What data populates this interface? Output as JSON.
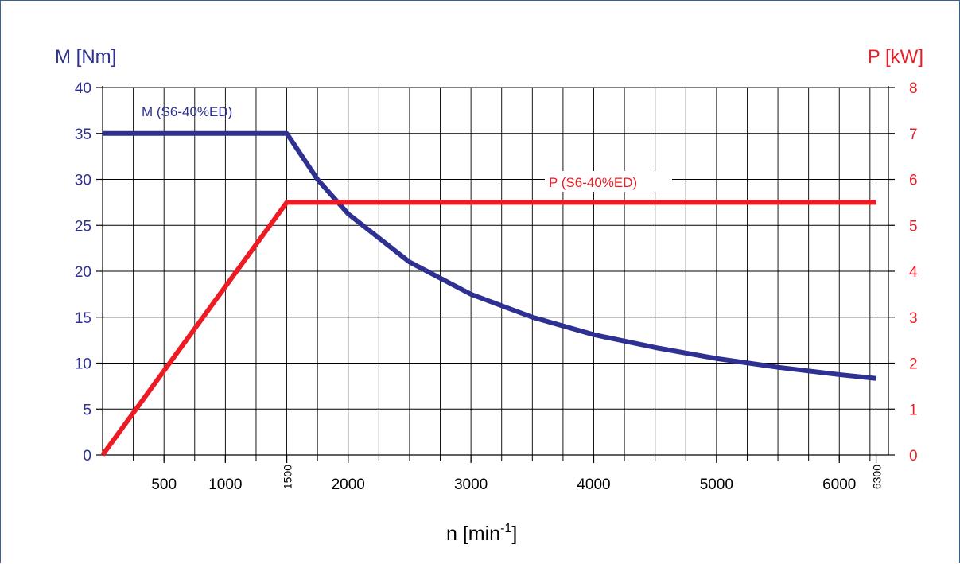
{
  "chart_data": {
    "type": "line",
    "y_left_label": "M [Nm]",
    "y_right_label": "P [kW]",
    "x_label": {
      "base": "n [min",
      "sup": "-1",
      "close": "]"
    },
    "x_range": [
      0,
      6400
    ],
    "y_left_range": [
      0,
      40
    ],
    "y_right_range": [
      0,
      8
    ],
    "x_ticks": [
      {
        "value": 500,
        "label": "500"
      },
      {
        "value": 1000,
        "label": "1000"
      },
      {
        "value": 1500,
        "label": "1500",
        "rotated": true
      },
      {
        "value": 2000,
        "label": "2000"
      },
      {
        "value": 3000,
        "label": "3000"
      },
      {
        "value": 4000,
        "label": "4000"
      },
      {
        "value": 5000,
        "label": "5000"
      },
      {
        "value": 6000,
        "label": "6000"
      },
      {
        "value": 6300,
        "label": "6300",
        "rotated": true
      }
    ],
    "y_left_ticks": [
      "0",
      "5",
      "10",
      "15",
      "20",
      "25",
      "30",
      "35",
      "40"
    ],
    "y_right_ticks": [
      "0",
      "1",
      "2",
      "3",
      "4",
      "5",
      "6",
      "7",
      "8"
    ],
    "grid": true,
    "colors": {
      "torque": "#2e3192",
      "power": "#ed1c24",
      "grid": "#000000"
    },
    "series": [
      {
        "name": "M (S6-40%ED)",
        "axis": "left",
        "color": "#2e3192",
        "points": [
          [
            0,
            35
          ],
          [
            1500,
            35
          ],
          [
            1750,
            30
          ],
          [
            2000,
            26.25
          ],
          [
            2500,
            21
          ],
          [
            3000,
            17.5
          ],
          [
            3500,
            15
          ],
          [
            4000,
            13.1
          ],
          [
            4500,
            11.7
          ],
          [
            5000,
            10.5
          ],
          [
            5500,
            9.55
          ],
          [
            6000,
            8.75
          ],
          [
            6300,
            8.33
          ]
        ]
      },
      {
        "name": "P (S6-40%ED)",
        "axis": "right",
        "color": "#ed1c24",
        "points": [
          [
            0,
            0
          ],
          [
            1500,
            5.5
          ],
          [
            6300,
            5.5
          ]
        ]
      }
    ]
  }
}
